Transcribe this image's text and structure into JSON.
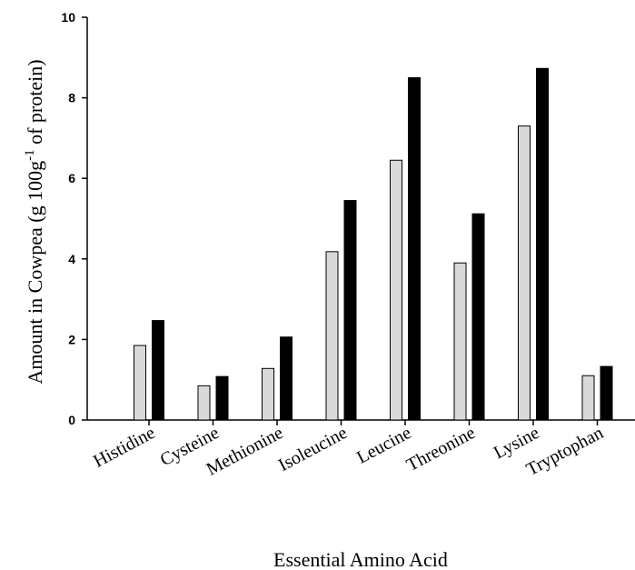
{
  "chart_data": {
    "type": "bar",
    "title": "",
    "xlabel": "Essential Amino Acid",
    "ylabel": {
      "prefix": "Amount in Cowpea (g 100g",
      "superscript": "-1",
      "suffix": " of protein)"
    },
    "ylim": [
      0,
      10
    ],
    "yticks": [
      "0",
      "2",
      "4",
      "6",
      "8",
      "10"
    ],
    "grid": false,
    "legend": null,
    "categories": [
      "Histidine",
      "Cysteine",
      "Methionine",
      "Isoleucine",
      "Leucine",
      "Threonine",
      "Lysine",
      "Tryptophan"
    ],
    "series": [
      {
        "color": "#d9d9d9",
        "values": [
          1.85,
          0.85,
          1.28,
          4.18,
          6.45,
          3.9,
          7.3,
          1.1
        ]
      },
      {
        "color": "#000000",
        "values": [
          2.47,
          1.08,
          2.06,
          5.45,
          8.5,
          5.12,
          8.73,
          1.33
        ]
      }
    ]
  }
}
